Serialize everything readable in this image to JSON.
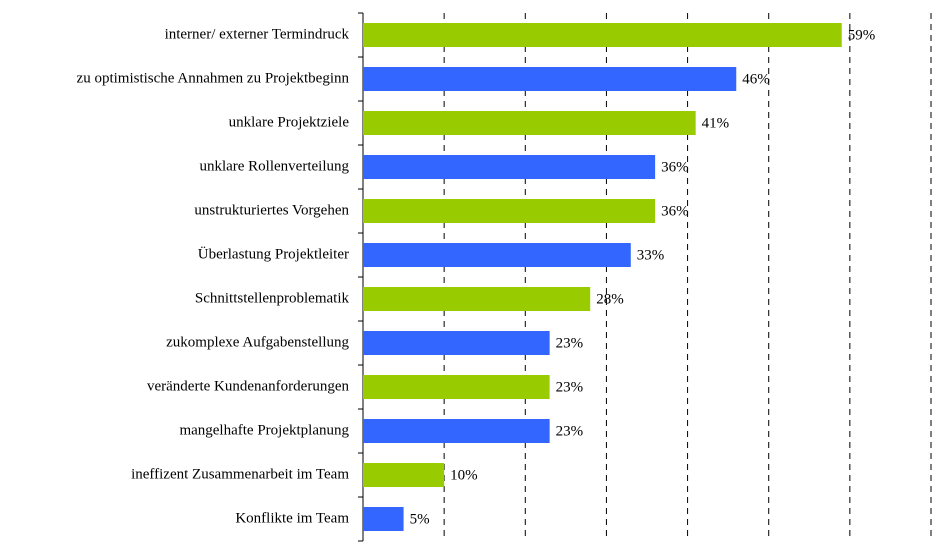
{
  "chart_data": {
    "type": "bar",
    "orientation": "horizontal",
    "categories": [
      "interner/ externer Termindruck",
      "zu optimistische Annahmen zu Projektbeginn",
      "unklare Projektziele",
      "unklare Rollenverteilung",
      "unstrukturiertes Vorgehen",
      "Überlastung Projektleiter",
      "Schnittstellenproblematik",
      "zukomplexe Aufgabenstellung",
      "veränderte Kundenanforderungen",
      "mangelhafte Projektplanung",
      "ineffizent Zusammenarbeit im Team",
      "Konflikte im Team"
    ],
    "values": [
      59,
      46,
      41,
      36,
      36,
      33,
      28,
      23,
      23,
      23,
      10,
      5
    ],
    "value_labels": [
      "59%",
      "46%",
      "41%",
      "36%",
      "36%",
      "33%",
      "28%",
      "23%",
      "23%",
      "23%",
      "10%",
      "5%"
    ],
    "colors": [
      "#99cc00",
      "#3366ff",
      "#99cc00",
      "#3366ff",
      "#99cc00",
      "#3366ff",
      "#99cc00",
      "#3366ff",
      "#99cc00",
      "#3366ff",
      "#99cc00",
      "#3366ff"
    ],
    "xlim": [
      0,
      70
    ],
    "xticks": [
      0,
      10,
      20,
      30,
      40,
      50,
      60,
      70
    ],
    "grid": true
  }
}
